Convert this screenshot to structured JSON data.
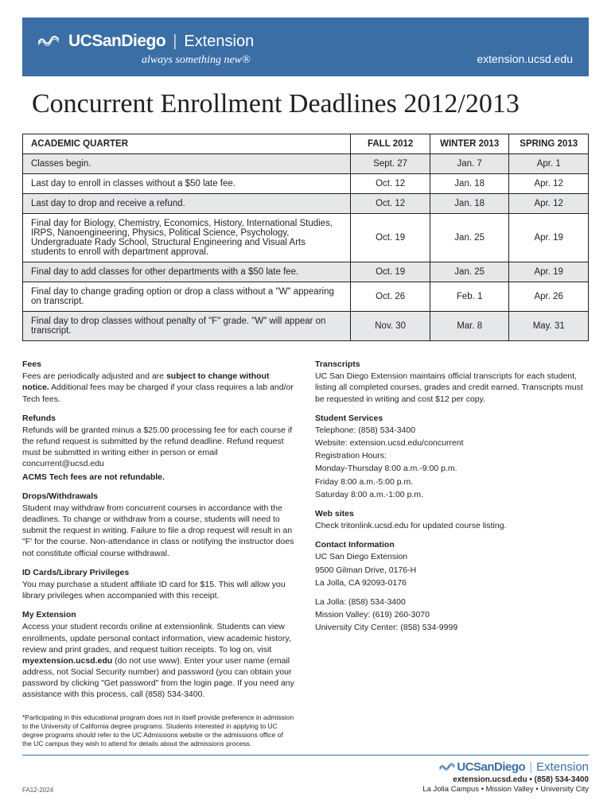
{
  "header": {
    "brand_main": "UCSanDiego",
    "brand_ext": "Extension",
    "tagline": "always something new®",
    "site_url": "extension.ucsd.edu",
    "banner_bg": "#3a6ea5"
  },
  "title": "Concurrent Enrollment Deadlines 2012/2013",
  "table": {
    "header_bg": "#ffffff",
    "shaded_bg": "#e6e7e8",
    "border_color": "#231f20",
    "columns": [
      "ACADEMIC QUARTER",
      "FALL 2012",
      "WINTER 2013",
      "SPRING 2013"
    ],
    "rows": [
      {
        "desc": "Classes begin.",
        "fall": "Sept. 27",
        "winter": "Jan. 7",
        "spring": "Apr. 1",
        "shaded": true
      },
      {
        "desc": "Last day to enroll in classes without a $50 late fee.",
        "fall": "Oct. 12",
        "winter": "Jan. 18",
        "spring": "Apr. 12",
        "shaded": false
      },
      {
        "desc": "Last day to drop and receive a refund.",
        "fall": "Oct. 12",
        "winter": "Jan. 18",
        "spring": "Apr. 12",
        "shaded": true
      },
      {
        "desc": "Final day for Biology, Chemistry, Economics, History, International Studies, IRPS, Nanoengineering, Physics, Political Science, Psychology, Undergraduate Rady School, Structural Engineering and Visual Arts students to enroll with department approval.",
        "fall": "Oct. 19",
        "winter": "Jan. 25",
        "spring": "Apr. 19",
        "shaded": false
      },
      {
        "desc": "Final day to add classes for other departments with a $50 late fee.",
        "fall": "Oct. 19",
        "winter": "Jan. 25",
        "spring": "Apr. 19",
        "shaded": true
      },
      {
        "desc": "Final day to change grading option or drop a class without a \"W\" appearing on transcript.",
        "fall": "Oct. 26",
        "winter": "Feb. 1",
        "spring": "Apr. 26",
        "shaded": false
      },
      {
        "desc": "Final day to drop classes without penalty of \"F\" grade. \"W\" will appear on transcript.",
        "fall": "Nov. 30",
        "winter": "Mar. 8",
        "spring": "May.  31",
        "shaded": true
      }
    ]
  },
  "left_col": {
    "fees_h": "Fees",
    "fees_p1a": "Fees are periodically adjusted and are ",
    "fees_p1b": "subject to change without notice.",
    "fees_p1c": " Additional fees may be charged if your class requires a lab and/or Tech fees.",
    "refunds_h": "Refunds",
    "refunds_p": "Refunds will be granted minus a $25.00 processing fee for each course if the refund request is submitted by the refund deadline. Refund request must be submitted in writing either in person or email concurrent@ucsd.edu",
    "refunds_bold": "ACMS Tech fees are not refundable.",
    "drops_h": "Drops/Withdrawals",
    "drops_p": "Student may withdraw from concurrent courses in accordance with the deadlines. To change or withdraw from a course, students will need to submit the request in writing. Failure to file a drop request will result in an \"F' for the course. Non-attendance in class or notifying the instructor does not constitute official course withdrawal.",
    "id_h": "ID Cards/Library Privileges",
    "id_p": "You may purchase a student affiliate ID card for $15. This will allow you library privileges when accompanied with this receipt.",
    "myext_h": "My Extension",
    "myext_p1": "Access your student records online at extensionlink.  Students can view enrollments, update personal contact information, view academic history, review and print grades, and request tuition receipts.  To log on, visit ",
    "myext_bold": "myextension.ucsd.edu",
    "myext_p2": " (do not use www).  Enter your user name (email address, not Social Security number) and password (you can obtain your password by clicking \"Get password\" from the login page.  If you need any assistance with this process, call (858) 534-3400."
  },
  "right_col": {
    "trans_h": "Transcripts",
    "trans_p": "UC San Diego Extension maintains official transcripts for each student, listing all completed courses, grades and credit earned. Transcripts must be requested in writing and cost $12 per copy.",
    "ss_h": "Student Services",
    "ss_tel": "Telephone: (858) 534-3400",
    "ss_web": "Website: extension.ucsd.edu/concurrent",
    "ss_reg": "Registration Hours:",
    "ss_h1": "Monday-Thursday 8:00 a.m.-9:00 p.m.",
    "ss_h2": "Friday 8:00 a.m.-5:00 p.m.",
    "ss_h3": "Saturday 8:00 a.m.-1:00 p.m.",
    "web_h": "Web sites",
    "web_p": "Check tritonlink.ucsd.edu for updated course listing.",
    "contact_h": "Contact Information",
    "contact_l1": "UC San Diego Extension",
    "contact_l2": "9500 Gilman Drive, 0176-H",
    "contact_l3": "La Jolla, CA 92093-0176",
    "contact_l4": "La Jolla: (858) 534-3400",
    "contact_l5": "Mission Valley: (619) 260-3070",
    "contact_l6": "University City Center: (858) 534-9999"
  },
  "disclaimer": "*Participating in this educational program does not in itself provide preference in admission to the University of California degree programs. Students interested in applying to UC degree programs should refer to the UC Admissions website or the admissions office of  the UC campus they wish to attend for details about the admissions process.",
  "footer": {
    "code": "FA12-2024",
    "brand_main": "UCSanDiego",
    "brand_ext": "Extension",
    "contact": "extension.ucsd.edu • (858) 534-3400",
    "campus": "La Jolla Campus • Mission Valley • University City",
    "brand_color": "#3a6ea5"
  }
}
